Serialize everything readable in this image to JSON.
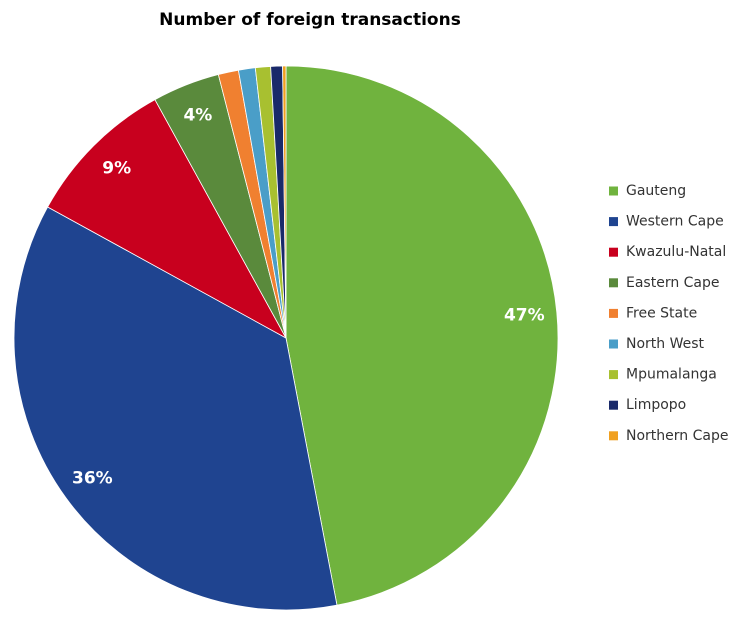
{
  "chart_data": {
    "type": "pie",
    "title": "Number of foreign transactions",
    "categories": [
      "Gauteng",
      "Western Cape",
      "Kwazulu-Natal",
      "Eastern Cape",
      "Free State",
      "North West",
      "Mpumalanga",
      "Limpopo",
      "Northern Cape"
    ],
    "values": [
      47,
      36,
      9,
      4,
      1.2,
      1.0,
      0.9,
      0.7,
      0.2
    ],
    "value_labels": [
      "47%",
      "36%",
      "9%",
      "4%",
      null,
      null,
      null,
      null,
      null
    ],
    "colors": [
      "#70b33e",
      "#1f4490",
      "#c8001e",
      "#5a8a3c",
      "#f08030",
      "#4a9ec8",
      "#a8c030",
      "#1a2a6a",
      "#f0a020"
    ],
    "legend": "right"
  }
}
